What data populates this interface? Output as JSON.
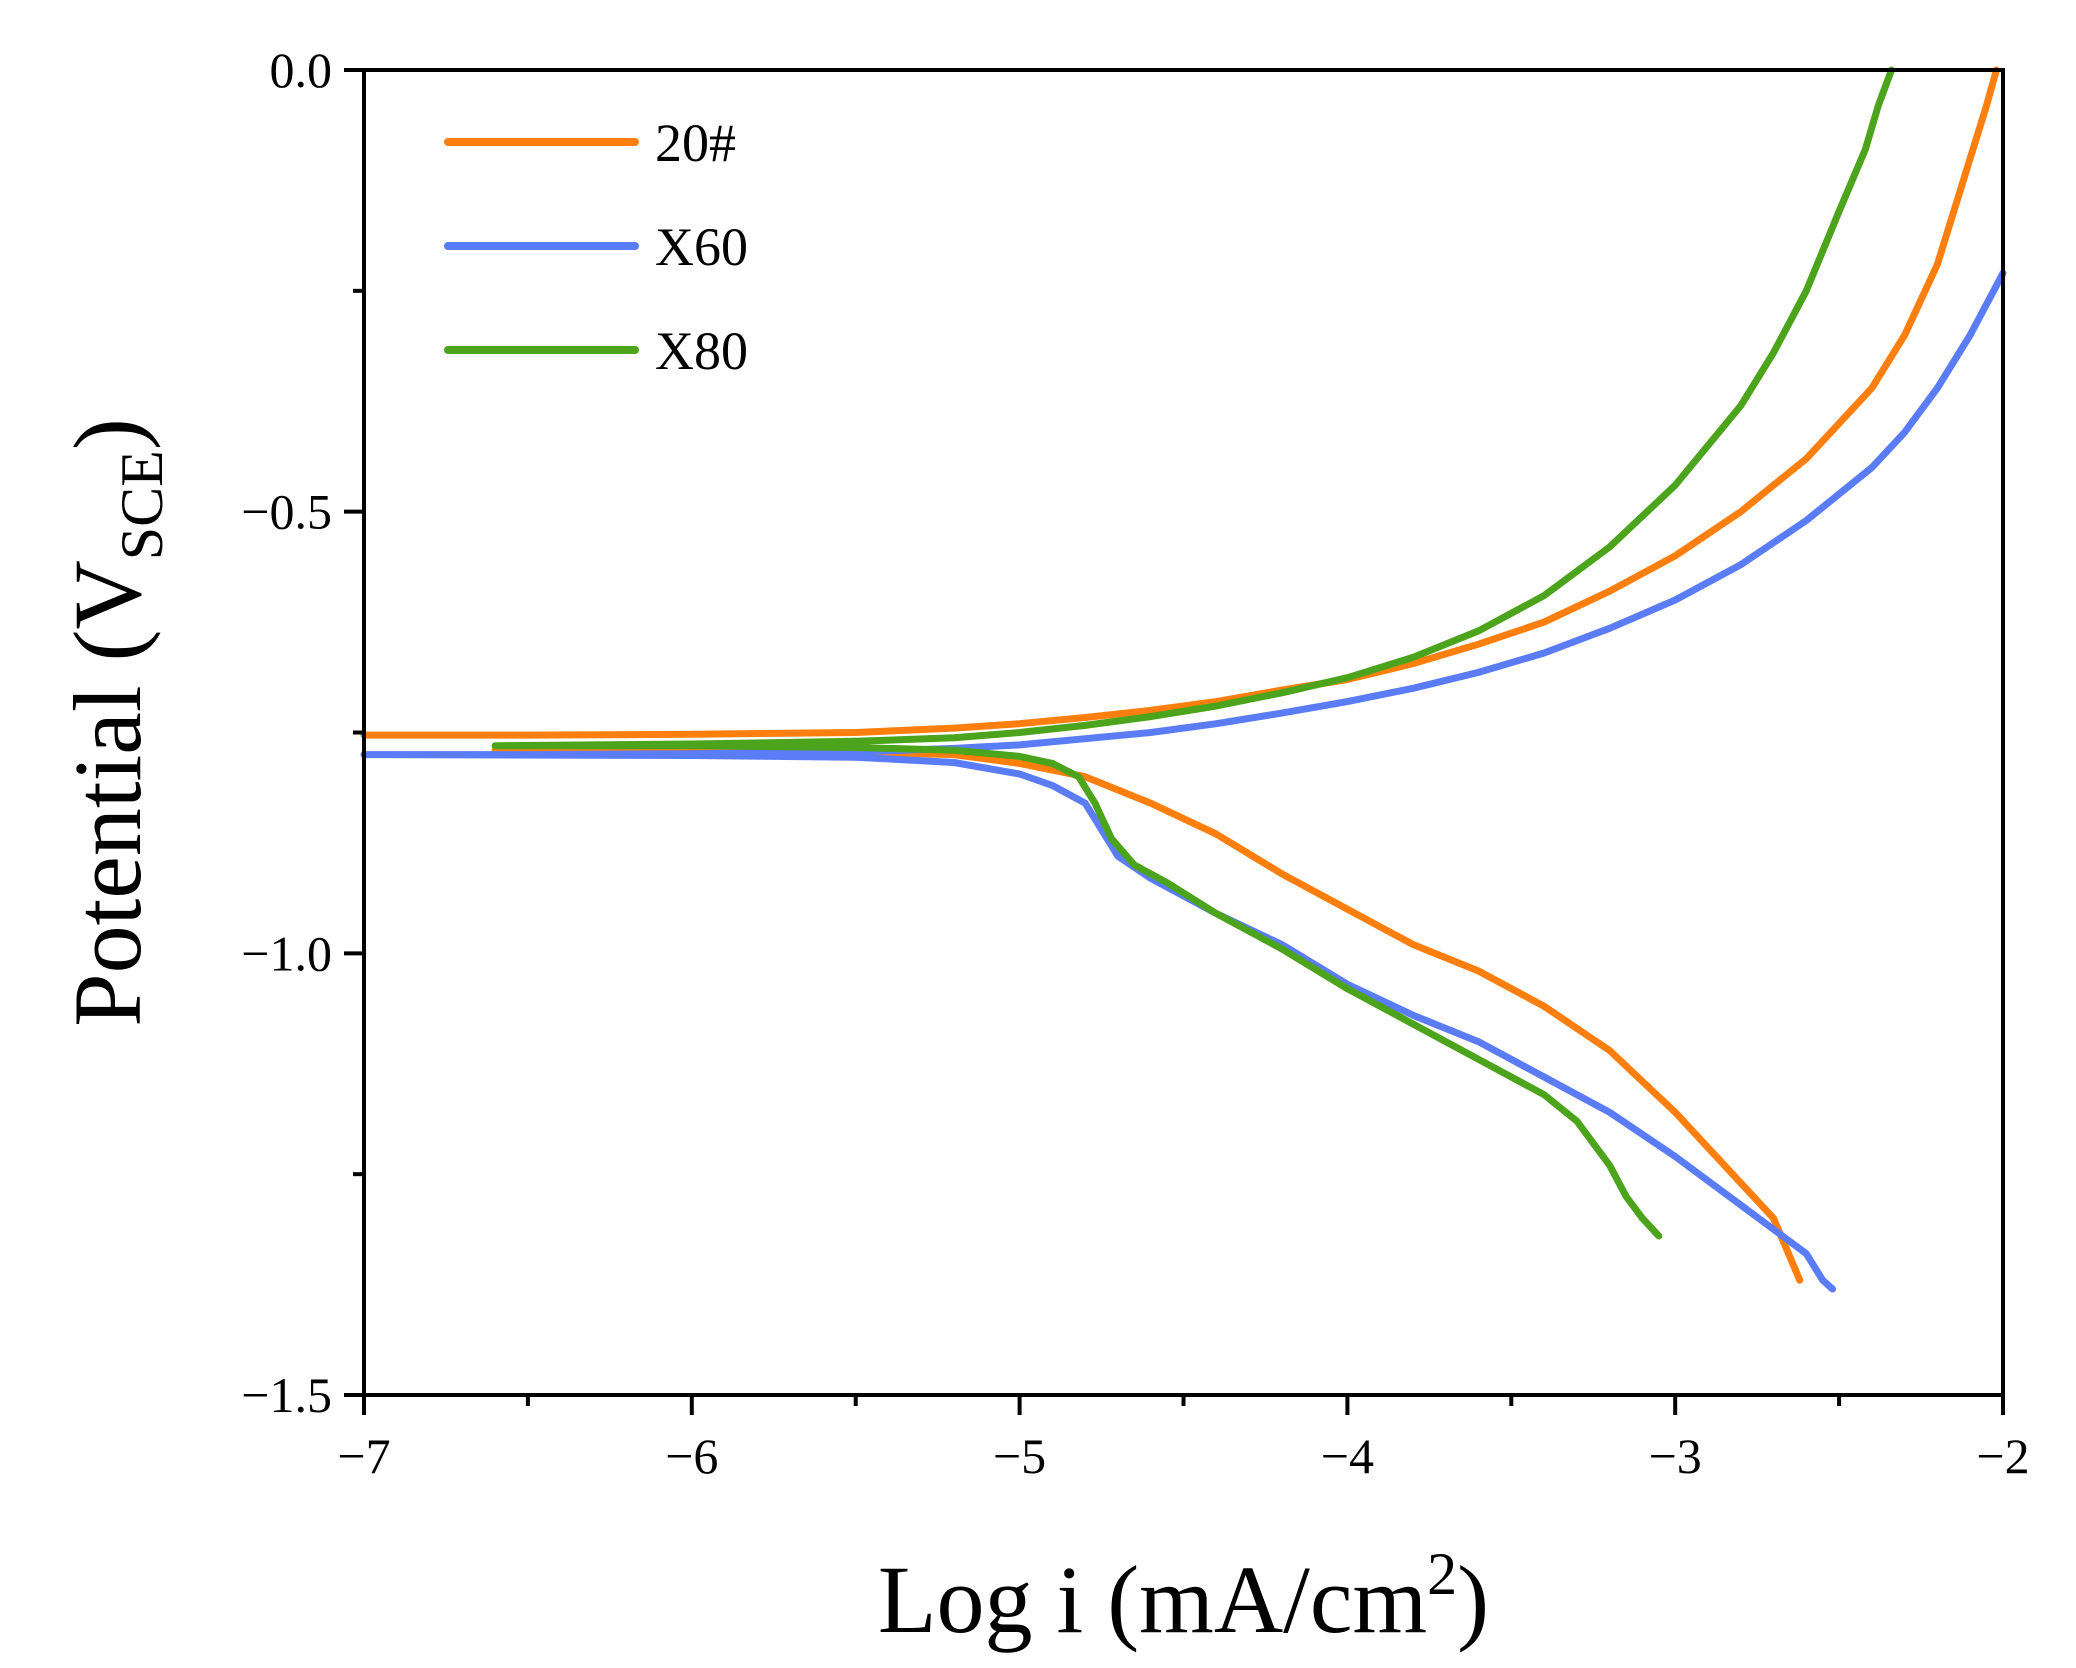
{
  "chart_data": {
    "type": "line",
    "title": "",
    "xlabel": "Log i (mA/cm2)",
    "xlabel_parts": {
      "main": "Log i (mA/cm",
      "sup": "2",
      "end": ")"
    },
    "ylabel": "Potential (VSCE)",
    "ylabel_parts": {
      "main": "Potential (V",
      "sub": "SCE",
      "end": ")"
    },
    "xlim": [
      -7,
      -2
    ],
    "ylim": [
      -1.5,
      0.0
    ],
    "x_ticks": [
      {
        "value": -7,
        "label": "−7"
      },
      {
        "value": -6,
        "label": "−6"
      },
      {
        "value": -5,
        "label": "−5"
      },
      {
        "value": -4,
        "label": "−4"
      },
      {
        "value": -3,
        "label": "−3"
      },
      {
        "value": -2,
        "label": "−2"
      }
    ],
    "y_ticks": [
      {
        "value": 0.0,
        "label": "0.0"
      },
      {
        "value": -0.5,
        "label": "−0.5"
      },
      {
        "value": -1.0,
        "label": "−1.0"
      },
      {
        "value": -1.5,
        "label": "−1.5"
      }
    ],
    "x_minor_ticks": [
      -6.5,
      -5.5,
      -4.5,
      -3.5,
      -2.5
    ],
    "y_minor_ticks": [
      -0.25,
      -0.75,
      -1.25
    ],
    "grid": false,
    "legend_position": "top-left",
    "series": [
      {
        "name": "20#",
        "color": "#ff7f0e",
        "points": [
          [
            -7.0,
            -0.753
          ],
          [
            -6.5,
            -0.753
          ],
          [
            -6.0,
            -0.752
          ],
          [
            -5.5,
            -0.75
          ],
          [
            -5.2,
            -0.745
          ],
          [
            -5.0,
            -0.74
          ],
          [
            -4.8,
            -0.733
          ],
          [
            -4.6,
            -0.725
          ],
          [
            -4.4,
            -0.715
          ],
          [
            -4.2,
            -0.702
          ],
          [
            -4.0,
            -0.69
          ],
          [
            -3.8,
            -0.672
          ],
          [
            -3.6,
            -0.65
          ],
          [
            -3.4,
            -0.625
          ],
          [
            -3.2,
            -0.59
          ],
          [
            -3.0,
            -0.55
          ],
          [
            -2.8,
            -0.5
          ],
          [
            -2.6,
            -0.44
          ],
          [
            -2.4,
            -0.36
          ],
          [
            -2.3,
            -0.3
          ],
          [
            -2.2,
            -0.22
          ],
          [
            -2.15,
            -0.16
          ],
          [
            -2.1,
            -0.1
          ],
          [
            -2.05,
            -0.04
          ],
          [
            -2.02,
            0.0
          ],
          null,
          [
            -6.6,
            -0.77
          ],
          [
            -6.0,
            -0.77
          ],
          [
            -5.5,
            -0.772
          ],
          [
            -5.2,
            -0.775
          ],
          [
            -5.0,
            -0.785
          ],
          [
            -4.8,
            -0.8
          ],
          [
            -4.6,
            -0.83
          ],
          [
            -4.4,
            -0.865
          ],
          [
            -4.2,
            -0.91
          ],
          [
            -4.0,
            -0.95
          ],
          [
            -3.8,
            -0.99
          ],
          [
            -3.6,
            -1.02
          ],
          [
            -3.4,
            -1.06
          ],
          [
            -3.2,
            -1.11
          ],
          [
            -3.0,
            -1.18
          ],
          [
            -2.8,
            -1.26
          ],
          [
            -2.7,
            -1.3
          ],
          [
            -2.62,
            -1.37
          ]
        ]
      },
      {
        "name": "X60",
        "color": "#5b7cf7",
        "points": [
          [
            -7.0,
            -0.775
          ],
          [
            -6.5,
            -0.775
          ],
          [
            -6.0,
            -0.774
          ],
          [
            -5.5,
            -0.772
          ],
          [
            -5.2,
            -0.768
          ],
          [
            -5.0,
            -0.764
          ],
          [
            -4.8,
            -0.757
          ],
          [
            -4.6,
            -0.75
          ],
          [
            -4.4,
            -0.74
          ],
          [
            -4.2,
            -0.728
          ],
          [
            -4.0,
            -0.715
          ],
          [
            -3.8,
            -0.7
          ],
          [
            -3.6,
            -0.682
          ],
          [
            -3.4,
            -0.66
          ],
          [
            -3.2,
            -0.632
          ],
          [
            -3.0,
            -0.6
          ],
          [
            -2.8,
            -0.56
          ],
          [
            -2.6,
            -0.51
          ],
          [
            -2.4,
            -0.45
          ],
          [
            -2.3,
            -0.41
          ],
          [
            -2.2,
            -0.36
          ],
          [
            -2.1,
            -0.3
          ],
          [
            -2.0,
            -0.23
          ],
          null,
          [
            -7.0,
            -0.775
          ],
          [
            -6.0,
            -0.776
          ],
          [
            -5.5,
            -0.778
          ],
          [
            -5.2,
            -0.784
          ],
          [
            -5.0,
            -0.797
          ],
          [
            -4.9,
            -0.81
          ],
          [
            -4.8,
            -0.83
          ],
          [
            -4.75,
            -0.86
          ],
          [
            -4.7,
            -0.89
          ],
          [
            -4.6,
            -0.915
          ],
          [
            -4.5,
            -0.935
          ],
          [
            -4.4,
            -0.955
          ],
          [
            -4.2,
            -0.99
          ],
          [
            -4.0,
            -1.035
          ],
          [
            -3.8,
            -1.07
          ],
          [
            -3.6,
            -1.1
          ],
          [
            -3.4,
            -1.14
          ],
          [
            -3.2,
            -1.18
          ],
          [
            -3.0,
            -1.23
          ],
          [
            -2.8,
            -1.285
          ],
          [
            -2.6,
            -1.34
          ],
          [
            -2.55,
            -1.37
          ],
          [
            -2.52,
            -1.38
          ]
        ]
      },
      {
        "name": "X80",
        "color": "#4ca31c",
        "points": [
          [
            -6.6,
            -0.765
          ],
          [
            -6.0,
            -0.763
          ],
          [
            -5.5,
            -0.76
          ],
          [
            -5.2,
            -0.756
          ],
          [
            -5.0,
            -0.75
          ],
          [
            -4.8,
            -0.742
          ],
          [
            -4.6,
            -0.732
          ],
          [
            -4.4,
            -0.72
          ],
          [
            -4.2,
            -0.705
          ],
          [
            -4.0,
            -0.688
          ],
          [
            -3.8,
            -0.665
          ],
          [
            -3.6,
            -0.635
          ],
          [
            -3.4,
            -0.595
          ],
          [
            -3.2,
            -0.54
          ],
          [
            -3.0,
            -0.47
          ],
          [
            -2.8,
            -0.38
          ],
          [
            -2.7,
            -0.32
          ],
          [
            -2.6,
            -0.25
          ],
          [
            -2.5,
            -0.16
          ],
          [
            -2.42,
            -0.09
          ],
          [
            -2.38,
            -0.04
          ],
          [
            -2.34,
            0.0
          ],
          null,
          [
            -6.6,
            -0.765
          ],
          [
            -6.0,
            -0.765
          ],
          [
            -5.5,
            -0.767
          ],
          [
            -5.2,
            -0.77
          ],
          [
            -5.0,
            -0.777
          ],
          [
            -4.9,
            -0.785
          ],
          [
            -4.82,
            -0.8
          ],
          [
            -4.77,
            -0.83
          ],
          [
            -4.72,
            -0.87
          ],
          [
            -4.65,
            -0.9
          ],
          [
            -4.55,
            -0.92
          ],
          [
            -4.4,
            -0.955
          ],
          [
            -4.2,
            -0.995
          ],
          [
            -4.0,
            -1.04
          ],
          [
            -3.8,
            -1.08
          ],
          [
            -3.6,
            -1.12
          ],
          [
            -3.4,
            -1.16
          ],
          [
            -3.3,
            -1.19
          ],
          [
            -3.2,
            -1.24
          ],
          [
            -3.15,
            -1.275
          ],
          [
            -3.1,
            -1.3
          ],
          [
            -3.05,
            -1.32
          ]
        ]
      }
    ]
  }
}
